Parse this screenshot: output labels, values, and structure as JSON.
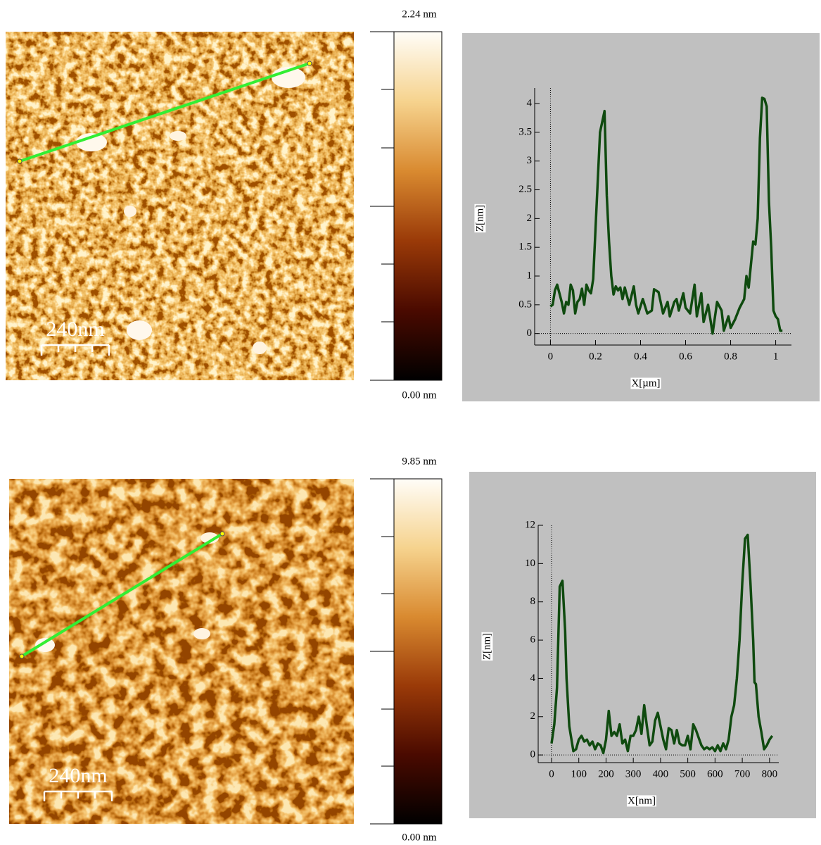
{
  "afm_images": [
    {
      "scale_bar": "240nm",
      "colorbar_max": "2.24 nm",
      "colorbar_min": "0.00 nm"
    },
    {
      "scale_bar": "240nm",
      "colorbar_max": "9.85 nm",
      "colorbar_min": "0.00 nm"
    }
  ],
  "chart_data": [
    {
      "type": "line",
      "xlabel": "X[µm]",
      "ylabel": "Z[nm]",
      "color": "#0f4a0f",
      "xlim": [
        -0.07,
        1.07
      ],
      "ylim": [
        -0.2,
        4.27
      ],
      "xticks": [
        0,
        0.2,
        0.4,
        0.6,
        0.8,
        1
      ],
      "yticks": [
        0,
        0.5,
        1,
        1.5,
        2,
        2.5,
        3,
        3.5,
        4
      ],
      "x": [
        0,
        0.01,
        0.02,
        0.03,
        0.04,
        0.05,
        0.06,
        0.07,
        0.08,
        0.09,
        0.1,
        0.11,
        0.12,
        0.13,
        0.14,
        0.15,
        0.16,
        0.17,
        0.18,
        0.19,
        0.2,
        0.22,
        0.24,
        0.25,
        0.26,
        0.27,
        0.28,
        0.29,
        0.3,
        0.31,
        0.32,
        0.33,
        0.35,
        0.37,
        0.38,
        0.39,
        0.41,
        0.43,
        0.45,
        0.46,
        0.48,
        0.5,
        0.52,
        0.53,
        0.55,
        0.56,
        0.57,
        0.59,
        0.6,
        0.62,
        0.64,
        0.65,
        0.67,
        0.68,
        0.7,
        0.72,
        0.74,
        0.76,
        0.77,
        0.79,
        0.8,
        0.82,
        0.84,
        0.86,
        0.87,
        0.88,
        0.89,
        0.9,
        0.91,
        0.92,
        0.93,
        0.94,
        0.95,
        0.96,
        0.97,
        0.98,
        0.99,
        1.0,
        1.01,
        1.02,
        1.03
      ],
      "values": [
        0.47,
        0.5,
        0.75,
        0.85,
        0.7,
        0.55,
        0.35,
        0.55,
        0.5,
        0.85,
        0.75,
        0.35,
        0.55,
        0.6,
        0.78,
        0.5,
        0.85,
        0.75,
        0.7,
        0.95,
        1.8,
        3.5,
        3.87,
        2.4,
        1.6,
        1.0,
        0.68,
        0.82,
        0.75,
        0.8,
        0.6,
        0.8,
        0.5,
        0.82,
        0.5,
        0.35,
        0.6,
        0.35,
        0.4,
        0.77,
        0.72,
        0.35,
        0.55,
        0.3,
        0.55,
        0.6,
        0.4,
        0.7,
        0.45,
        0.35,
        0.85,
        0.3,
        0.7,
        0.2,
        0.5,
        0.0,
        0.55,
        0.4,
        0.05,
        0.3,
        0.1,
        0.25,
        0.45,
        0.6,
        1.0,
        0.8,
        1.2,
        1.6,
        1.55,
        2.0,
        3.4,
        4.1,
        4.08,
        3.95,
        2.3,
        1.5,
        0.4,
        0.3,
        0.25,
        0.05,
        0.05
      ]
    },
    {
      "type": "line",
      "xlabel": "X[nm]",
      "ylabel": "Z[nm]",
      "color": "#0f4a0f",
      "xlim": [
        -49,
        834
      ],
      "ylim": [
        -0.4,
        12
      ],
      "xticks": [
        0,
        100,
        200,
        300,
        400,
        500,
        600,
        700,
        800
      ],
      "yticks": [
        0,
        2,
        4,
        6,
        8,
        10,
        12
      ],
      "x": [
        0,
        10,
        20,
        30,
        40,
        50,
        55,
        65,
        80,
        90,
        100,
        110,
        120,
        130,
        140,
        150,
        160,
        170,
        180,
        190,
        200,
        210,
        220,
        230,
        240,
        250,
        260,
        270,
        280,
        290,
        300,
        310,
        320,
        330,
        340,
        350,
        360,
        370,
        380,
        390,
        400,
        410,
        420,
        430,
        440,
        450,
        460,
        470,
        480,
        490,
        500,
        510,
        520,
        530,
        540,
        550,
        560,
        570,
        580,
        590,
        600,
        610,
        620,
        630,
        640,
        650,
        660,
        670,
        680,
        690,
        700,
        710,
        720,
        730,
        740,
        745,
        750,
        760,
        770,
        780,
        790,
        800,
        810
      ],
      "values": [
        0.6,
        1.6,
        3.5,
        8.8,
        9.1,
        6.5,
        4,
        1.5,
        0.2,
        0.3,
        0.8,
        1.0,
        0.7,
        0.8,
        0.5,
        0.7,
        0.3,
        0.6,
        0.5,
        0.1,
        0.8,
        2.3,
        1.0,
        1.2,
        1.0,
        1.6,
        0.6,
        0.8,
        0.2,
        1.0,
        1.0,
        1.3,
        2.0,
        1.1,
        2.6,
        1.5,
        0.5,
        0.7,
        1.8,
        2.2,
        1.5,
        0.8,
        0.3,
        1.4,
        1.3,
        0.6,
        1.3,
        0.6,
        0.5,
        0.5,
        1.0,
        0.3,
        1.6,
        1.3,
        0.9,
        0.5,
        0.3,
        0.4,
        0.3,
        0.4,
        0.2,
        0.5,
        0.2,
        0.6,
        0.3,
        0.8,
        2.0,
        2.6,
        4,
        6,
        9,
        11.3,
        11.5,
        9,
        6,
        3.8,
        3.7,
        2,
        1.2,
        0.3,
        0.5,
        0.8,
        1.0
      ]
    }
  ]
}
